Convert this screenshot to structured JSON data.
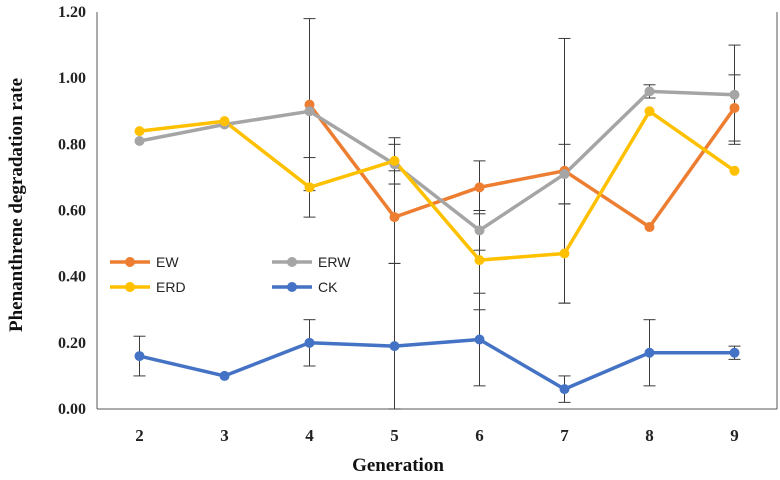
{
  "chart_data": {
    "type": "line",
    "title": "",
    "xlabel": "Generation",
    "ylabel": "Phenanthrene  degradation rate",
    "categories": [
      "2",
      "3",
      "4",
      "5",
      "6",
      "7",
      "8",
      "9"
    ],
    "ylim": [
      0,
      1.2
    ],
    "yticks": [
      "0.00",
      "0.20",
      "0.40",
      "0.60",
      "0.80",
      "1.00",
      "1.20"
    ],
    "grid": false,
    "legend_position": "lower-left",
    "series": [
      {
        "name": "EW",
        "color": "#ED7D31",
        "values": [
          null,
          null,
          0.92,
          0.58,
          0.67,
          0.72,
          0.55,
          0.91
        ],
        "errors": [
          null,
          null,
          0.26,
          0.14,
          0.08,
          0.4,
          0.0,
          0.1
        ]
      },
      {
        "name": "ERW",
        "color": "#A5A5A5",
        "values": [
          0.81,
          0.86,
          0.9,
          0.74,
          0.54,
          0.71,
          0.96,
          0.95
        ],
        "errors": [
          0.0,
          0.0,
          0.0,
          0.06,
          0.06,
          0.09,
          0.02,
          0.15
        ]
      },
      {
        "name": "ERD",
        "color": "#FFC000",
        "values": [
          0.84,
          0.87,
          0.67,
          0.75,
          0.45,
          0.47,
          0.9,
          0.72
        ],
        "errors": [
          0.0,
          0.0,
          0.09,
          0.07,
          0.15,
          0.15,
          0.0,
          0.0
        ]
      },
      {
        "name": "CK",
        "color": "#4472C4",
        "values": [
          0.16,
          0.1,
          0.2,
          0.19,
          0.21,
          0.06,
          0.17,
          0.17
        ],
        "errors": [
          0.06,
          0.0,
          0.07,
          0.25,
          0.14,
          0.04,
          0.1,
          0.02
        ]
      }
    ]
  }
}
